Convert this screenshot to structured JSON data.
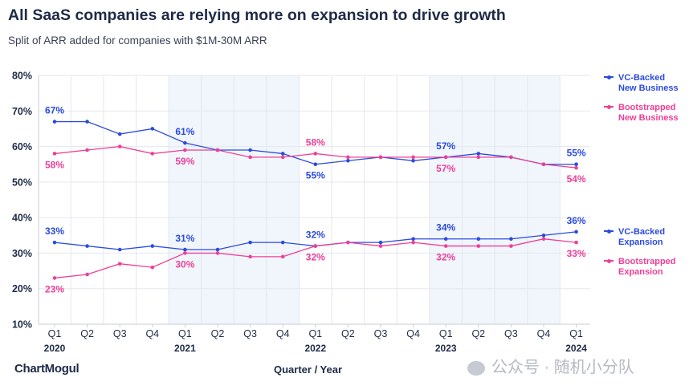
{
  "header": {
    "title": "All SaaS companies are relying more on expansion to drive growth",
    "subtitle": "Split of ARR added for companies with $1M-30M ARR"
  },
  "footer": {
    "brand": "ChartMogul",
    "x_axis_title": "Quarter / Year",
    "watermark": "公众号 · 随机小分队"
  },
  "colors": {
    "vc": "#2b4be0",
    "bootstrapped": "#ee3f97",
    "shade": "#f1f6fc",
    "grid": "#e3e7ee",
    "text": "#1e2a47"
  },
  "legend": {
    "vc_new": "VC-Backed\nNew Business",
    "bs_new": "Bootstrapped\nNew Business",
    "vc_exp": "VC-Backed\nExpansion",
    "bs_exp": "Bootstrapped\nExpansion"
  },
  "chart_data": {
    "type": "line",
    "y_ticks": [
      "10%",
      "20%",
      "30%",
      "40%",
      "50%",
      "60%",
      "70%",
      "80%"
    ],
    "ylim": [
      10,
      80
    ],
    "categories": [
      "Q1",
      "Q2",
      "Q3",
      "Q4",
      "Q1",
      "Q2",
      "Q3",
      "Q4",
      "Q1",
      "Q2",
      "Q3",
      "Q4",
      "Q1",
      "Q2",
      "Q3",
      "Q4",
      "Q1"
    ],
    "years": [
      {
        "label": "2020",
        "index": 0
      },
      {
        "label": "2021",
        "index": 4
      },
      {
        "label": "2022",
        "index": 8
      },
      {
        "label": "2023",
        "index": 12
      },
      {
        "label": "2024",
        "index": 16
      }
    ],
    "shaded_ranges": [
      [
        4,
        7
      ],
      [
        12,
        15
      ]
    ],
    "grid": true,
    "series": [
      {
        "key": "vc_new",
        "name": "VC-Backed New Business",
        "color": "vc",
        "values": [
          67,
          67,
          63.5,
          65,
          61,
          59,
          59,
          58,
          55,
          56,
          57,
          56,
          57,
          58,
          57,
          55,
          55
        ],
        "labels": [
          {
            "i": 0,
            "text": "67%",
            "pos": "above"
          },
          {
            "i": 4,
            "text": "61%",
            "pos": "above"
          },
          {
            "i": 8,
            "text": "55%",
            "pos": "below"
          },
          {
            "i": 12,
            "text": "57%",
            "pos": "above"
          },
          {
            "i": 16,
            "text": "55%",
            "pos": "above"
          }
        ]
      },
      {
        "key": "bs_new",
        "name": "Bootstrapped New Business",
        "color": "bootstrapped",
        "values": [
          58,
          59,
          60,
          58,
          59,
          59,
          57,
          57,
          58,
          57,
          57,
          57,
          57,
          57,
          57,
          55,
          54
        ],
        "labels": [
          {
            "i": 0,
            "text": "58%",
            "pos": "below"
          },
          {
            "i": 4,
            "text": "59%",
            "pos": "below"
          },
          {
            "i": 8,
            "text": "58%",
            "pos": "above"
          },
          {
            "i": 12,
            "text": "57%",
            "pos": "below"
          },
          {
            "i": 16,
            "text": "54%",
            "pos": "below"
          }
        ]
      },
      {
        "key": "vc_exp",
        "name": "VC-Backed Expansion",
        "color": "vc",
        "values": [
          33,
          32,
          31,
          32,
          31,
          31,
          33,
          33,
          32,
          33,
          33,
          34,
          34,
          34,
          34,
          35,
          36
        ],
        "labels": [
          {
            "i": 0,
            "text": "33%",
            "pos": "above"
          },
          {
            "i": 4,
            "text": "31%",
            "pos": "above"
          },
          {
            "i": 8,
            "text": "32%",
            "pos": "above"
          },
          {
            "i": 12,
            "text": "34%",
            "pos": "above"
          },
          {
            "i": 16,
            "text": "36%",
            "pos": "above"
          }
        ]
      },
      {
        "key": "bs_exp",
        "name": "Bootstrapped Expansion",
        "color": "bootstrapped",
        "values": [
          23,
          24,
          27,
          26,
          30,
          30,
          29,
          29,
          32,
          33,
          32,
          33,
          32,
          32,
          32,
          34,
          33
        ],
        "labels": [
          {
            "i": 0,
            "text": "23%",
            "pos": "below"
          },
          {
            "i": 4,
            "text": "30%",
            "pos": "below"
          },
          {
            "i": 8,
            "text": "32%",
            "pos": "below"
          },
          {
            "i": 12,
            "text": "32%",
            "pos": "below"
          },
          {
            "i": 16,
            "text": "33%",
            "pos": "below"
          }
        ]
      }
    ]
  }
}
